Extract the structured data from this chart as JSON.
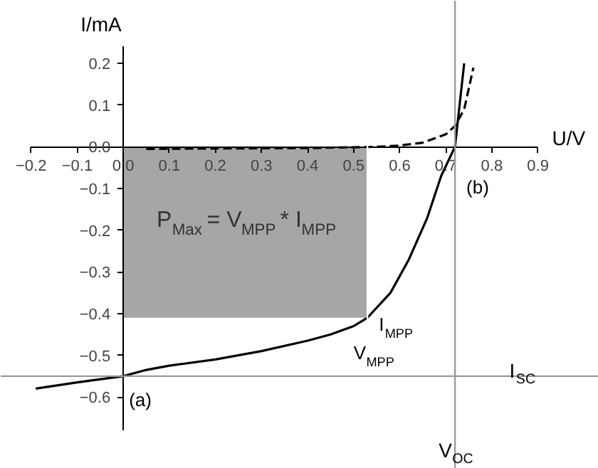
{
  "chart_data": {
    "type": "line",
    "xlabel": "U/V",
    "ylabel": "I/mA",
    "xlim": [
      -0.2,
      0.9
    ],
    "ylim": [
      -0.68,
      0.24
    ],
    "xticks": [
      -0.2,
      -0.1,
      {
        "value": 0,
        "label": "0.0"
      },
      0.1,
      0.2,
      0.3,
      0.4,
      0.5,
      0.6,
      0.7,
      0.8,
      0.9
    ],
    "yticks": [
      -0.6,
      -0.5,
      -0.4,
      -0.3,
      -0.2,
      -0.1,
      {
        "value": 0,
        "label": "0.0"
      },
      0.1,
      0.2
    ],
    "grid": false,
    "marker": "none",
    "series": [
      {
        "type": "area",
        "color": "#a6a6a6",
        "x": [
          0,
          0.53
        ],
        "values": [
          -0.41,
          -0.41
        ]
      },
      {
        "color": "#000000",
        "line_style": "solid",
        "x": [
          -0.19,
          -0.1,
          0,
          0.05,
          0.1,
          0.2,
          0.3,
          0.4,
          0.45,
          0.5,
          0.53,
          0.58,
          0.62,
          0.66,
          0.69,
          0.72,
          0.73,
          0.74
        ],
        "values": [
          -0.58,
          -0.565,
          -0.55,
          -0.535,
          -0.525,
          -0.51,
          -0.49,
          -0.465,
          -0.45,
          -0.43,
          -0.41,
          -0.35,
          -0.27,
          -0.17,
          -0.07,
          0.0,
          0.1,
          0.2
        ]
      },
      {
        "color": "#000000",
        "line_style": "dashed",
        "x": [
          0.05,
          0.2,
          0.4,
          0.55,
          0.6,
          0.65,
          0.7,
          0.72,
          0.74,
          0.76
        ],
        "values": [
          -0.005,
          -0.004,
          -0.003,
          0.0,
          0.003,
          0.01,
          0.03,
          0.05,
          0.09,
          0.19
        ]
      }
    ],
    "ref_lines": [
      {
        "axis": "x",
        "value": 0.53,
        "color": "#ffffff"
      },
      {
        "axis": "y",
        "value": -0.55,
        "label": "I$_{SC}$",
        "color": "#999999"
      },
      {
        "axis": "x",
        "value": 0.72,
        "label": "V$_{OC}$",
        "color": "#999999"
      }
    ],
    "annotations": [
      "P$_{Max}$ = V$_{MPP}$ * I$_{MPP}$",
      {
        "text": "I$_{MPP}$",
        "x": 0.53,
        "y": -0.41
      },
      {
        "text": "V$_{MPP}$",
        "x": 0.53,
        "y": -0.41
      },
      {
        "text": "(a)",
        "x": 0,
        "y": -0.55
      },
      {
        "text": "(b)",
        "x": 0.72,
        "y": 0
      }
    ]
  }
}
